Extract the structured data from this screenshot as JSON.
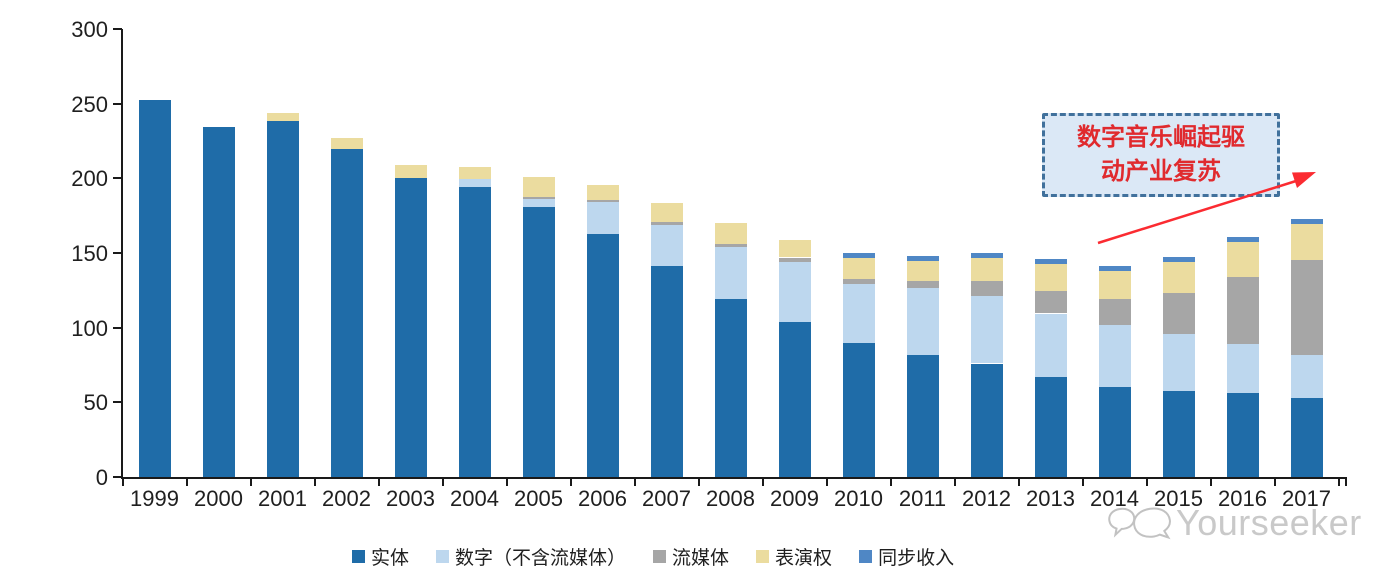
{
  "watermark": {
    "text": "Yourseeker",
    "logo": "chat-bubbles-icon",
    "color": "#c9c9c9"
  },
  "annotation": {
    "line1": "数字音乐崛起驱",
    "line2": "动产业复苏",
    "text_color": "#e02a2e",
    "border_color": "#41719c",
    "fill_color": "#dbe8f6",
    "arrow_color": "#fb2b31"
  },
  "chart_data": {
    "type": "bar",
    "stacked": true,
    "title": "",
    "xlabel": "",
    "ylabel": "",
    "ylim": [
      0,
      300
    ],
    "yticks": [
      0,
      50,
      100,
      150,
      200,
      250,
      300
    ],
    "grid": false,
    "legend_position": "bottom",
    "categories": [
      "1999",
      "2000",
      "2001",
      "2002",
      "2003",
      "2004",
      "2005",
      "2006",
      "2007",
      "2008",
      "2009",
      "2010",
      "2011",
      "2012",
      "2013",
      "2014",
      "2015",
      "2016",
      "2017"
    ],
    "series": [
      {
        "key": "physical",
        "name": "实体",
        "color": "#1f6ca8",
        "values": [
          252.5,
          234.5,
          238.5,
          220,
          200.5,
          194.5,
          181,
          162.5,
          141.5,
          119.5,
          104,
          89.5,
          82,
          76,
          67,
          60,
          57.5,
          56,
          53
        ]
      },
      {
        "key": "digital",
        "name": "数字（不含流媒体）",
        "color": "#bdd7ee",
        "values": [
          0,
          0,
          0,
          0,
          0,
          5,
          5,
          21.5,
          27.5,
          34.5,
          40,
          40,
          44.5,
          45,
          42.5,
          41.5,
          38.5,
          33,
          28.5
        ]
      },
      {
        "key": "streaming",
        "name": "流媒体",
        "color": "#a6a6a6",
        "values": [
          0,
          0,
          0,
          0,
          0,
          0,
          1.5,
          1.5,
          2,
          2,
          3,
          3,
          4.5,
          10,
          15,
          17.5,
          27,
          45,
          64
        ]
      },
      {
        "key": "performance",
        "name": "表演权",
        "color": "#ebdc9f",
        "values": [
          0,
          0,
          5.5,
          7,
          8.5,
          8,
          13.5,
          10,
          12.5,
          14,
          12,
          14,
          13.5,
          15.5,
          18,
          19,
          21,
          23.5,
          24
        ]
      },
      {
        "key": "sync",
        "name": "同步收入",
        "color": "#4f87c5",
        "values": [
          0,
          0,
          0,
          0,
          0,
          0,
          0,
          0,
          0,
          0,
          0,
          3.5,
          3.5,
          3.5,
          3.5,
          3,
          3.5,
          3.5,
          3.5
        ]
      }
    ]
  }
}
